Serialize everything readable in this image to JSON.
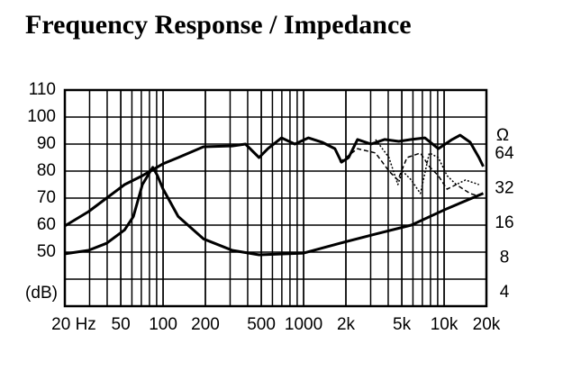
{
  "chart_data": {
    "type": "line",
    "title": "Frequency Response / Impedance",
    "y_label": "(dB)",
    "y2_label": "Ω",
    "xscale": "log",
    "y2scale": "log",
    "xlim": [
      20,
      20000
    ],
    "xticks": [
      {
        "value": 20,
        "label": "20 Hz"
      },
      50,
      100,
      200,
      500,
      1000,
      {
        "value": 2000,
        "label": "2k"
      },
      {
        "value": 5000,
        "label": "5k"
      },
      {
        "value": 10000,
        "label": "10k"
      },
      {
        "value": 20000,
        "label": "20k"
      }
    ],
    "ylim": [
      30,
      110
    ],
    "yticks": [
      50,
      60,
      70,
      80,
      90,
      100,
      110
    ],
    "ygrid_step": 10,
    "y2lim": [
      3.05,
      229
    ],
    "y2ticks": [
      4,
      8,
      16,
      32,
      64
    ],
    "grid": true,
    "series": [
      {
        "color": "#000",
        "style": "solid",
        "axis": "y",
        "x": [
          20,
          29.5,
          39.6,
          53.2,
          71.3,
          100,
          128,
          194,
          310,
          386,
          482,
          557,
          697,
          866,
          1080,
          1350,
          1670,
          1860,
          2090,
          2420,
          3020,
          3770,
          4760,
          5840,
          7290,
          9100,
          11400,
          13000,
          15300,
          17700,
          19000
        ],
        "values": [
          59.7,
          65,
          70,
          75,
          78.3,
          82.7,
          85,
          89,
          89.3,
          90,
          85,
          88.3,
          92.3,
          90,
          92.3,
          90.7,
          88.3,
          83.3,
          85,
          91.7,
          90,
          91.7,
          91,
          91.7,
          92.3,
          88.3,
          91.7,
          93.3,
          90.7,
          85,
          81.7
        ]
      },
      {
        "color": "#000",
        "style": "dashed",
        "axis": "y",
        "x": [
          1810,
          2420,
          3250,
          4050,
          4690,
          5440,
          6780,
          7850,
          9100,
          10500,
          12200,
          15300,
          17700
        ],
        "values": [
          83.3,
          88.3,
          86.7,
          80,
          76.7,
          85,
          86.7,
          81.7,
          78.3,
          73.3,
          75,
          71.7,
          70.7
        ]
      },
      {
        "color": "#000",
        "style": "dotted",
        "axis": "y",
        "x": [
          3250,
          4050,
          4690,
          5050,
          5840,
          6780,
          7850,
          9100,
          10500,
          12200,
          14200,
          17700
        ],
        "values": [
          91.7,
          85,
          75,
          80,
          76.7,
          71.7,
          86.7,
          85,
          78.3,
          75,
          76.7,
          75
        ]
      },
      {
        "color": "#000",
        "style": "solid",
        "axis": "y2",
        "x": [
          20,
          29.5,
          39.6,
          53.2,
          61.5,
          71.3,
          84.5,
          91,
          100,
          128,
          194,
          310,
          482,
          1000,
          1810,
          3250,
          5840,
          10500,
          19000
        ],
        "values": [
          8.67,
          9.3,
          10.7,
          14,
          18.3,
          34.7,
          48.9,
          41.7,
          31.7,
          18.3,
          11.7,
          9.3,
          8.5,
          8.8,
          10.7,
          12.9,
          15.4,
          21.4,
          29
        ]
      }
    ]
  }
}
